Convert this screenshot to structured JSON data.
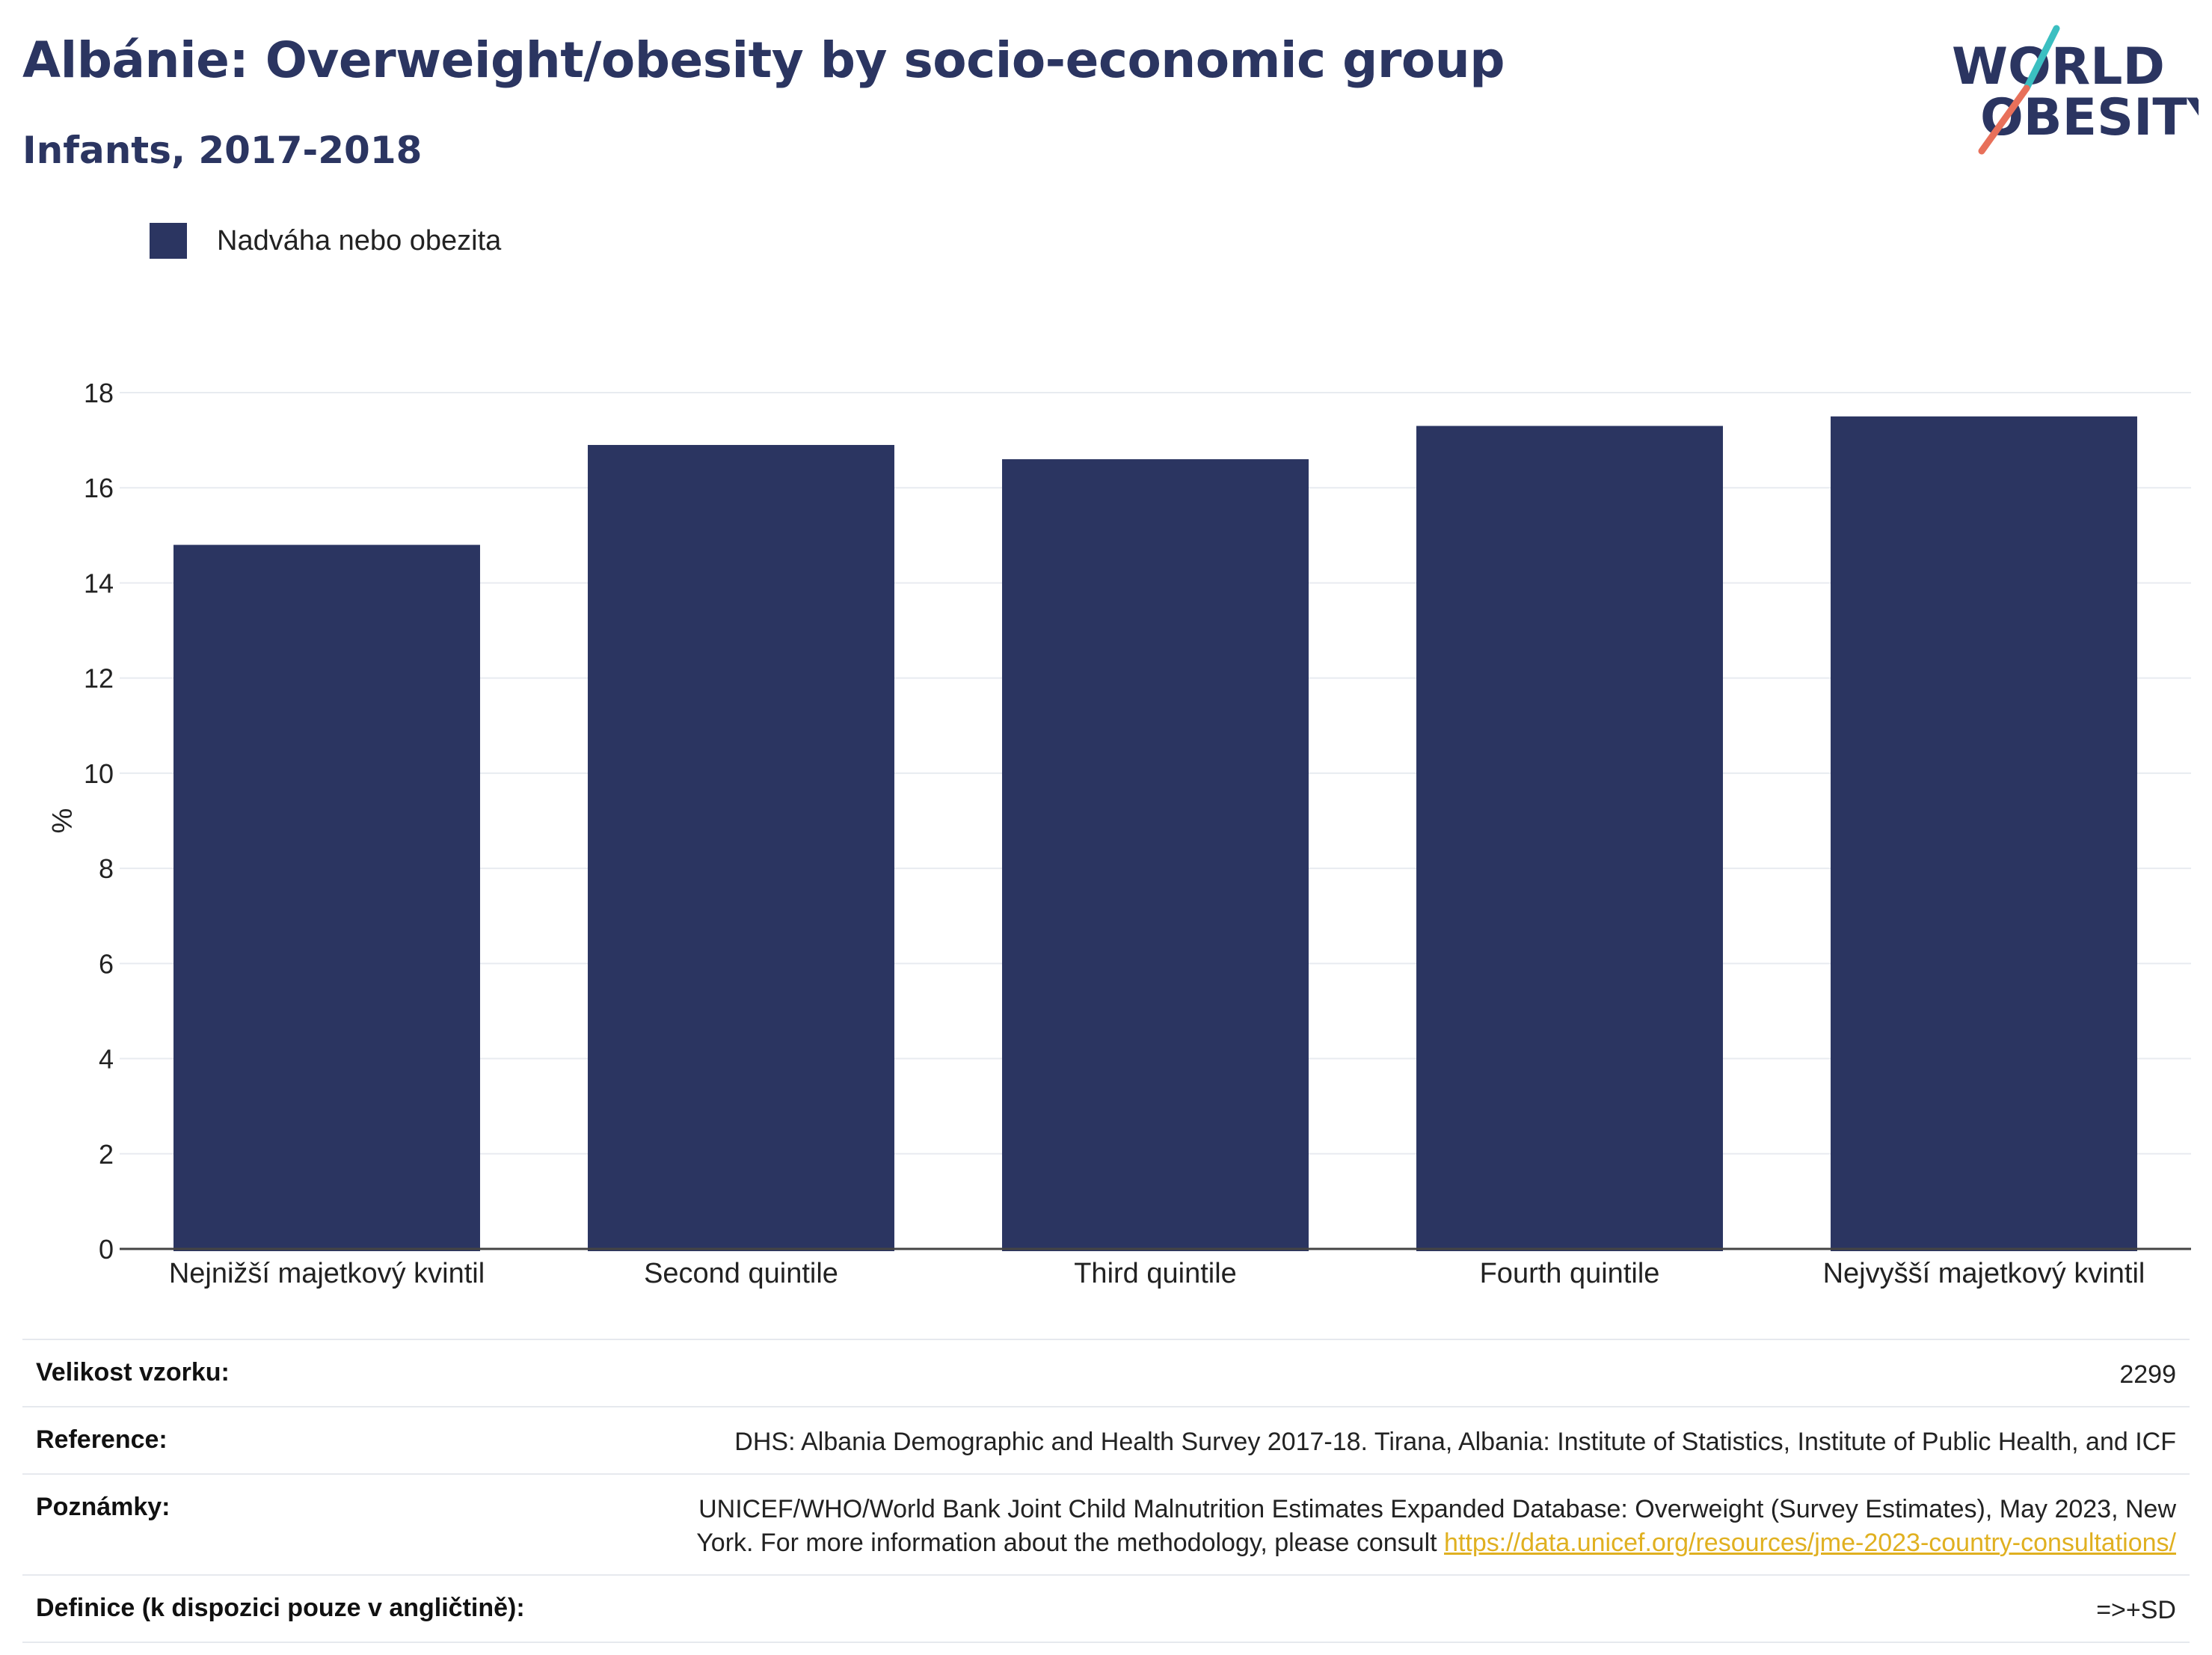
{
  "header": {
    "title": "Albánie: Overweight/obesity by socio-economic group",
    "subtitle": "Infants, 2017-2018"
  },
  "logo": {
    "line1": "WORLD",
    "line2": "OBESITY"
  },
  "legend": {
    "label": "Nadváha nebo obezita",
    "color": "#2b3561"
  },
  "chart_data": {
    "type": "bar",
    "categories": [
      "Nejnižší majetkový kvintil",
      "Second quintile",
      "Third quintile",
      "Fourth quintile",
      "Nejvyšší majetkový kvintil"
    ],
    "series": [
      {
        "name": "Nadváha nebo obezita",
        "values": [
          14.8,
          16.9,
          16.6,
          17.3,
          17.5
        ]
      }
    ],
    "ylabel": "%",
    "ylim": [
      0,
      18
    ],
    "yticks": [
      0,
      2,
      4,
      6,
      8,
      10,
      12,
      14,
      16,
      18
    ],
    "grid": true,
    "bar_color": "#2b3561"
  },
  "info": {
    "sample_label": "Velikost vzorku:",
    "sample_value": "2299",
    "reference_label": "Reference:",
    "reference_value": "DHS: Albania Demographic and Health Survey 2017-18. Tirana, Albania: Institute of Statistics, Institute of Public Health, and ICF",
    "notes_label": "Poznámky:",
    "notes_value": "UNICEF/WHO/World Bank Joint Child Malnutrition Estimates Expanded Database: Overweight (Survey Estimates), May 2023, New York. For more information about the methodology, please consult",
    "notes_link": "https://data.unicef.org/resources/jme-2023-country-consultations/",
    "definition_label": "Definice (k dispozici pouze v angličtině):",
    "definition_value": "=>+SD"
  }
}
